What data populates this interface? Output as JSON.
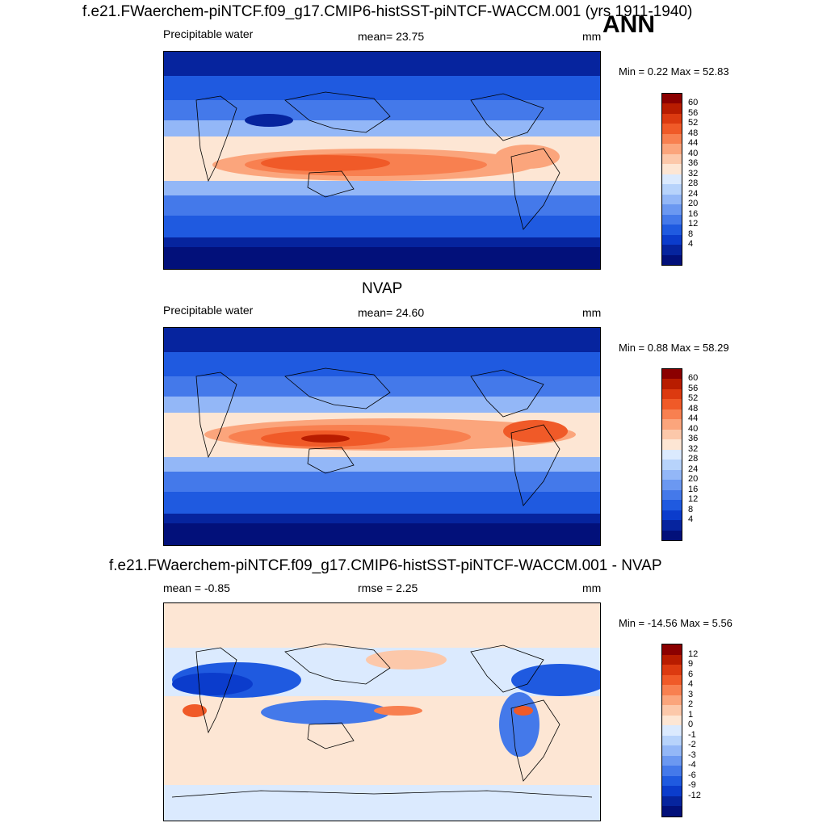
{
  "header": {
    "title": "f.e21.FWaerchem-piNTCF.f09_g17.CMIP6-histSST-piNTCF-WACCM.001 (yrs 1911-1940)",
    "season": "ANN"
  },
  "panel1": {
    "variable": "Precipitable water",
    "mean_text": "mean=  23.75",
    "units": "mm",
    "minmax_text": "Min =   0.22 Max =  52.83",
    "colorbar": {
      "colors": [
        "#8b0000",
        "#b81c00",
        "#dc3a10",
        "#f05a28",
        "#f88050",
        "#fba57c",
        "#fcc8aa",
        "#fde6d4",
        "#dbeafe",
        "#b7d3fb",
        "#93b7f7",
        "#6b98f1",
        "#4479ea",
        "#1f5ae0",
        "#0b3ccc",
        "#06249e",
        "#02107a"
      ],
      "labels": [
        "60",
        "56",
        "52",
        "48",
        "44",
        "40",
        "36",
        "32",
        "28",
        "24",
        "20",
        "16",
        "12",
        "8",
        "4"
      ]
    }
  },
  "panel2": {
    "title": "NVAP",
    "variable": "Precipitable water",
    "mean_text": "mean=  24.60",
    "units": "mm",
    "minmax_text": "Min =   0.88 Max =  58.29",
    "colorbar": {
      "colors": [
        "#8b0000",
        "#b81c00",
        "#dc3a10",
        "#f05a28",
        "#f88050",
        "#fba57c",
        "#fcc8aa",
        "#fde6d4",
        "#dbeafe",
        "#b7d3fb",
        "#93b7f7",
        "#6b98f1",
        "#4479ea",
        "#1f5ae0",
        "#0b3ccc",
        "#06249e",
        "#02107a"
      ],
      "labels": [
        "60",
        "56",
        "52",
        "48",
        "44",
        "40",
        "36",
        "32",
        "28",
        "24",
        "20",
        "16",
        "12",
        "8",
        "4"
      ]
    }
  },
  "panel3": {
    "title": "f.e21.FWaerchem-piNTCF.f09_g17.CMIP6-histSST-piNTCF-WACCM.001 - NVAP",
    "mean_text": "mean =  -0.85",
    "rmse_text": "rmse =   2.25",
    "units": "mm",
    "minmax_text": "Min = -14.56 Max =   5.56",
    "colorbar": {
      "colors": [
        "#8b0000",
        "#b81c00",
        "#dc3a10",
        "#f05a28",
        "#f88050",
        "#fba57c",
        "#fcc8aa",
        "#fde6d4",
        "#dbeafe",
        "#b7d3fb",
        "#93b7f7",
        "#6b98f1",
        "#4479ea",
        "#1f5ae0",
        "#0b3ccc",
        "#06249e",
        "#02107a"
      ],
      "labels": [
        "12",
        "9",
        "6",
        "4",
        "3",
        "2",
        "1",
        "0",
        "-1",
        "-2",
        "-3",
        "-4",
        "-6",
        "-9",
        "-12"
      ]
    }
  }
}
